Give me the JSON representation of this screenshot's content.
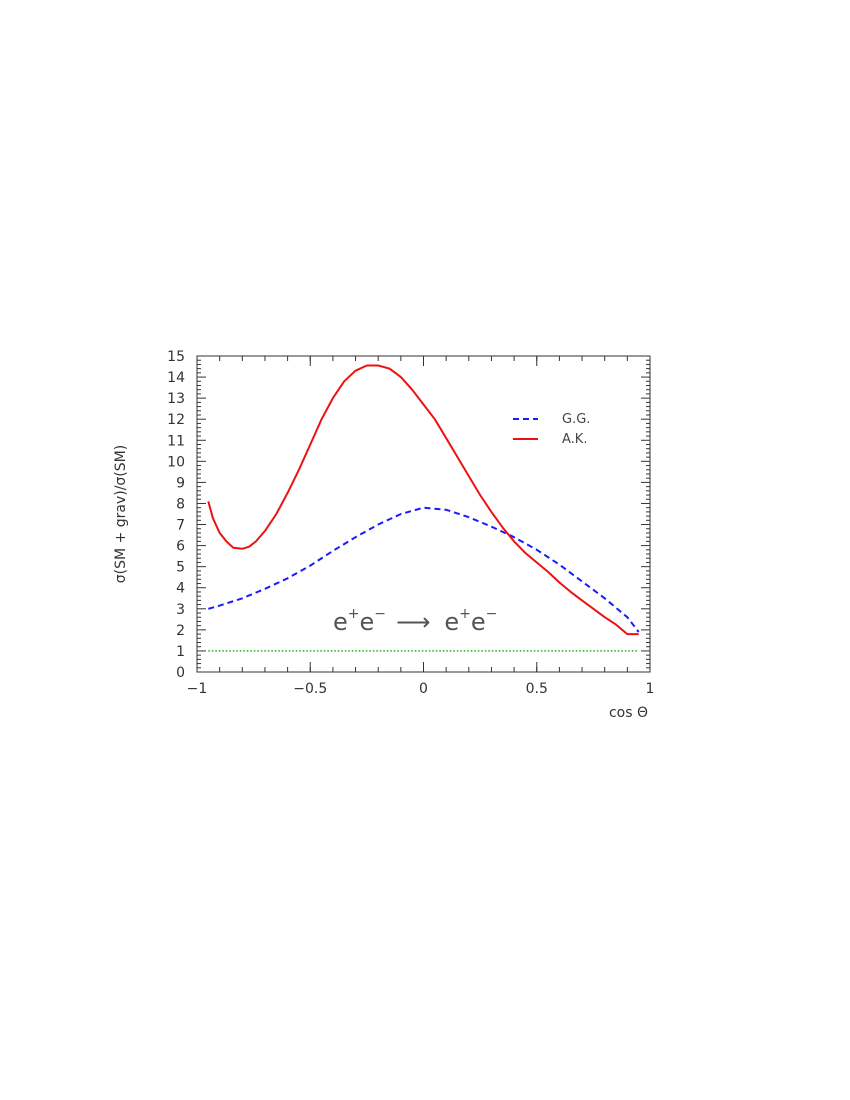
{
  "chart_data": {
    "type": "line",
    "xlabel": "cos Θ",
    "ylabel": "σ(SM + grav)/σ(SM)",
    "xlim": [
      -1,
      1
    ],
    "ylim": [
      0,
      15
    ],
    "x_ticks": [
      "−1",
      "−0.5",
      "0",
      "0.5",
      "1"
    ],
    "y_ticks": [
      "0",
      "1",
      "2",
      "3",
      "4",
      "5",
      "6",
      "7",
      "8",
      "9",
      "10",
      "11",
      "12",
      "13",
      "14",
      "15"
    ],
    "grid": false,
    "legend_position": "top-right",
    "annotation": {
      "text": "e⁺e⁻ ⟶ e⁺e⁻",
      "parts": [
        "e",
        "+",
        "e",
        "−",
        "⟶",
        "e",
        "+",
        "e",
        "−"
      ]
    },
    "series": [
      {
        "name": "G.G.",
        "color": "#1a1aff",
        "style": "dashed",
        "x": [
          -0.95,
          -0.9,
          -0.8,
          -0.7,
          -0.6,
          -0.5,
          -0.4,
          -0.3,
          -0.2,
          -0.1,
          0.0,
          0.1,
          0.2,
          0.3,
          0.4,
          0.5,
          0.6,
          0.7,
          0.8,
          0.9,
          0.95
        ],
        "y": [
          3.0,
          3.15,
          3.5,
          3.95,
          4.45,
          5.05,
          5.75,
          6.4,
          7.0,
          7.5,
          7.8,
          7.7,
          7.35,
          6.9,
          6.4,
          5.8,
          5.1,
          4.3,
          3.5,
          2.6,
          1.9
        ]
      },
      {
        "name": "A.K.",
        "color": "#ee1111",
        "style": "solid",
        "x": [
          -0.95,
          -0.93,
          -0.9,
          -0.87,
          -0.84,
          -0.8,
          -0.77,
          -0.74,
          -0.7,
          -0.65,
          -0.6,
          -0.55,
          -0.5,
          -0.45,
          -0.4,
          -0.35,
          -0.3,
          -0.25,
          -0.2,
          -0.15,
          -0.1,
          -0.05,
          0.0,
          0.05,
          0.1,
          0.15,
          0.2,
          0.25,
          0.3,
          0.35,
          0.4,
          0.45,
          0.5,
          0.55,
          0.6,
          0.65,
          0.7,
          0.75,
          0.8,
          0.85,
          0.9,
          0.95
        ],
        "y": [
          8.1,
          7.3,
          6.6,
          6.2,
          5.9,
          5.85,
          5.95,
          6.2,
          6.7,
          7.5,
          8.5,
          9.6,
          10.8,
          12.0,
          13.0,
          13.8,
          14.3,
          14.55,
          14.55,
          14.4,
          14.0,
          13.4,
          12.7,
          12.0,
          11.1,
          10.2,
          9.3,
          8.4,
          7.6,
          6.85,
          6.2,
          5.65,
          5.2,
          4.75,
          4.25,
          3.8,
          3.4,
          3.0,
          2.6,
          2.25,
          1.8,
          1.8
        ]
      },
      {
        "name": "",
        "color": "#22aa22",
        "style": "dotted",
        "x": [
          -0.95,
          0.95
        ],
        "y": [
          1.0,
          1.0
        ]
      }
    ]
  }
}
